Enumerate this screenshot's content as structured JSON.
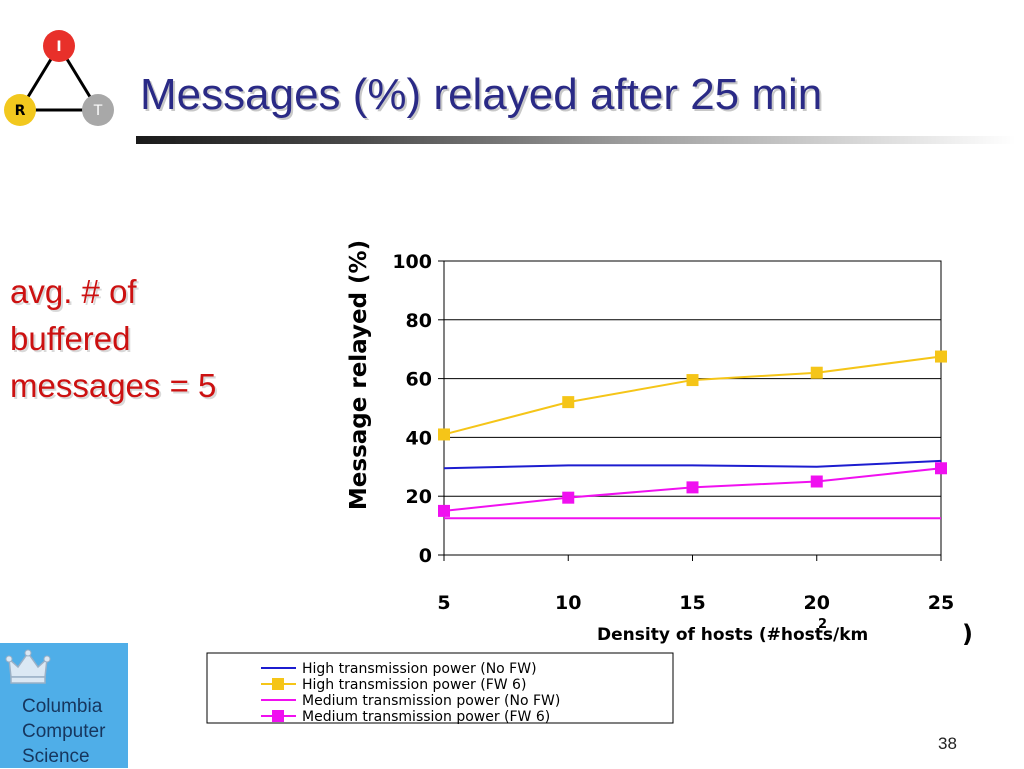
{
  "slide": {
    "title": "Messages (%) relayed after 25 min",
    "number": "38"
  },
  "logo": {
    "nodes": [
      {
        "label": "I",
        "color": "#e8302a"
      },
      {
        "label": "R",
        "color": "#f2c81e"
      },
      {
        "label": "T",
        "color": "#a8a8a8"
      }
    ]
  },
  "side_note": {
    "lines": [
      "avg. # of",
      "buffered",
      "messages = 5"
    ]
  },
  "institution": {
    "lines": [
      "Columbia",
      "Computer",
      "Science"
    ]
  },
  "chart_data": {
    "type": "line",
    "xlabel": "Density of hosts  (#hosts/km",
    "xlabel_suffix": ")",
    "xlabel_superscript": "2",
    "ylabel": "Message relayed (%)",
    "categories": [
      5,
      10,
      15,
      20,
      25
    ],
    "xlim": [
      5,
      25
    ],
    "ylim": [
      0,
      100
    ],
    "yticks": [
      0,
      20,
      40,
      60,
      80,
      100
    ],
    "grid": true,
    "legend_position": "bottom",
    "series": [
      {
        "name": "High transmission power (No FW)",
        "color": "#1c1ccf",
        "marker": "none",
        "values": [
          29.5,
          30.5,
          30.5,
          30,
          32
        ]
      },
      {
        "name": "High transmission power (FW 6)",
        "color": "#f5c518",
        "marker": "square",
        "values": [
          41,
          52,
          59.5,
          62,
          67.5
        ]
      },
      {
        "name": "Medium transmission power (No FW)",
        "color": "#f010f0",
        "marker": "none",
        "values": [
          12.5,
          12.5,
          12.5,
          12.5,
          12.5
        ]
      },
      {
        "name": "Medium transmission power (FW 6)",
        "color": "#f010f0",
        "marker": "square",
        "values": [
          15,
          19.5,
          23,
          25,
          29.5
        ]
      }
    ]
  }
}
